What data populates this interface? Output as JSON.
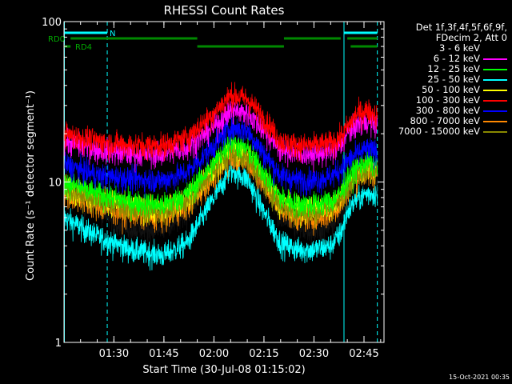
{
  "chart_data": {
    "type": "line",
    "title": "RHESSI Count Rates",
    "xlabel": "Start Time (30-Jul-08 01:15:02)",
    "ylabel": "Count Rate (s⁻¹ detector segment⁻¹)",
    "yscale": "log",
    "ylim": [
      1,
      100
    ],
    "xlim": [
      "01:15:02",
      "02:51:00"
    ],
    "x_ticks": [
      "01:30",
      "01:45",
      "02:00",
      "02:15",
      "02:30",
      "02:45"
    ],
    "y_ticks": [
      "1",
      "10",
      "100"
    ],
    "legend_position": "top-right outside plot",
    "legend_header": [
      "Det 1f,3f,4f,5f,6f,9f,",
      "FDecim 2, Att 0"
    ],
    "annotations": {
      "n_label": "N",
      "rd0_label": "RD0",
      "rd4_label": "RD4",
      "timestamp": "15-Oct-2021 00:35"
    },
    "markers": {
      "night_intervals": [
        [
          "01:15:02",
          "01:28"
        ],
        [
          "02:39",
          "02:49"
        ]
      ],
      "rd0_intervals": [
        [
          "01:17",
          "01:55"
        ],
        [
          "02:21",
          "02:38"
        ],
        [
          "02:40",
          "02:49"
        ]
      ],
      "rd4_intervals": [
        [
          "01:15:02",
          "01:17"
        ],
        [
          "01:55",
          "02:21"
        ],
        [
          "02:41",
          "02:49"
        ]
      ],
      "cyan_solid_lines": [
        "01:15:02",
        "02:39"
      ],
      "cyan_dashed_lines": [
        "01:28",
        "02:49"
      ]
    },
    "time_profile": {
      "x": [
        "01:15:02",
        "01:25",
        "01:35",
        "01:45",
        "01:52",
        "02:00",
        "02:05",
        "02:10",
        "02:15",
        "02:20",
        "02:25",
        "02:30",
        "02:35",
        "02:38",
        "02:40",
        "02:43",
        "02:46",
        "02:49"
      ]
    },
    "series": [
      {
        "name": "3 - 6 keV",
        "color": "#000000",
        "values": [
          9.5,
          6.5,
          5.2,
          5.0,
          6.5,
          11,
          15,
          13,
          9.5,
          6.2,
          5.2,
          5.0,
          5.3,
          6.5,
          8.5,
          10,
          11,
          10.5
        ]
      },
      {
        "name": "6 - 12 keV",
        "color": "#ff00ff",
        "values": [
          18,
          16,
          15,
          15,
          16.5,
          22,
          28,
          27,
          21,
          16,
          15,
          15,
          15.5,
          17,
          20,
          23,
          24,
          23
        ]
      },
      {
        "name": "12 - 25 keV",
        "color": "#00ff00",
        "values": [
          10,
          8.5,
          7.5,
          7.2,
          8.5,
          13,
          18,
          16,
          11.5,
          8,
          7.3,
          7.3,
          7.6,
          8.5,
          10.5,
          12.5,
          13.5,
          13
        ]
      },
      {
        "name": "25 - 50 keV",
        "color": "#00ffff",
        "values": [
          6.0,
          4.6,
          3.8,
          3.5,
          4.2,
          8,
          12,
          10.5,
          6.5,
          4.2,
          3.8,
          3.8,
          4.0,
          4.8,
          6.5,
          8.0,
          8.5,
          8.5
        ]
      },
      {
        "name": "50 - 100 keV",
        "color": "#ffff00",
        "values": [
          9.5,
          8,
          7,
          6.8,
          8,
          12,
          16,
          15,
          10.5,
          7.5,
          6.8,
          6.8,
          7.1,
          8,
          10,
          11.5,
          12.5,
          12
        ]
      },
      {
        "name": "100 - 300 keV",
        "color": "#ff0000",
        "values": [
          20,
          18,
          17,
          17,
          19,
          27,
          35,
          33,
          25,
          18,
          17,
          17,
          17.5,
          19,
          22,
          27,
          28,
          26
        ]
      },
      {
        "name": "300 - 800 keV",
        "color": "#0000ff",
        "values": [
          13,
          11,
          10.5,
          10.3,
          11.5,
          17,
          22,
          21,
          15,
          11,
          10.3,
          10.3,
          10.8,
          12,
          13.5,
          15,
          16,
          15.5
        ]
      },
      {
        "name": "800 - 7000 keV",
        "color": "#ff8800",
        "values": [
          8.5,
          7,
          6.3,
          6.0,
          7,
          11,
          14.5,
          13.5,
          9.5,
          6.8,
          6.0,
          6.0,
          6.3,
          7.2,
          9,
          10.8,
          11.5,
          11
        ]
      },
      {
        "name": "7000 - 15000 keV",
        "color": "#888800",
        "values": [
          9.2,
          7.7,
          6.8,
          6.6,
          7.6,
          11.7,
          15.2,
          14.2,
          10,
          7.2,
          6.5,
          6.5,
          6.9,
          7.8,
          9.6,
          11.3,
          12,
          11.6
        ]
      }
    ]
  }
}
